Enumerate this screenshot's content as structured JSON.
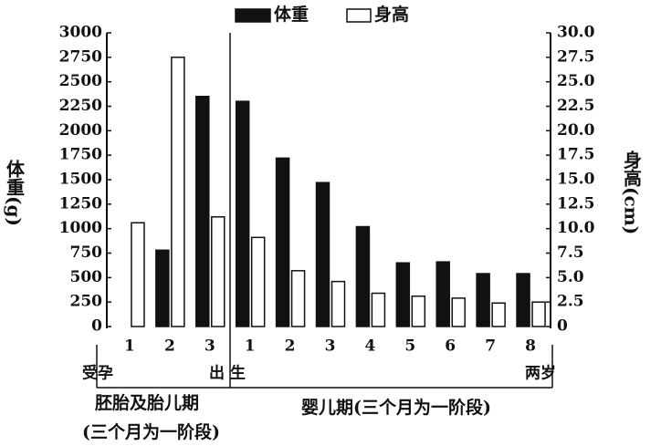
{
  "chart_data": {
    "type": "bar",
    "categories": [
      "1",
      "2",
      "3",
      "1",
      "2",
      "3",
      "4",
      "5",
      "6",
      "7",
      "8"
    ],
    "series": [
      {
        "name": "体重",
        "color": "#111111",
        "values": [
          0,
          780,
          2350,
          2300,
          1720,
          1470,
          1020,
          650,
          660,
          540,
          540
        ]
      },
      {
        "name": "身高",
        "color": "#ffffff",
        "axis": "y2",
        "values": [
          10.6,
          27.5,
          11.2,
          9.1,
          5.7,
          4.6,
          3.4,
          3.1,
          2.9,
          2.4,
          2.5
        ]
      }
    ],
    "ylabel": "体重(g)",
    "y2label": "身高(cm)",
    "ylim": [
      0,
      3000
    ],
    "yticks": [
      0,
      250,
      500,
      750,
      1000,
      1250,
      1500,
      1750,
      2000,
      2250,
      2500,
      2750,
      3000
    ],
    "y2lim": [
      0,
      30
    ],
    "y2ticks": [
      0,
      2.5,
      {
        "value": 5,
        "label": "5.0"
      },
      7.5,
      {
        "value": 10,
        "label": "10.0"
      },
      12.5,
      {
        "value": 15,
        "label": "15.0"
      },
      17.5,
      {
        "value": 20,
        "label": "20.0"
      },
      22.5,
      {
        "value": 25,
        "label": "25.0"
      },
      27.5,
      {
        "value": 30,
        "label": "30.0"
      }
    ],
    "annotations": [
      "受孕",
      "出生",
      "两岁",
      "胚胎及胎儿期",
      "(三个月为一阶段)",
      "婴儿期(三个月为一阶段)"
    ]
  }
}
